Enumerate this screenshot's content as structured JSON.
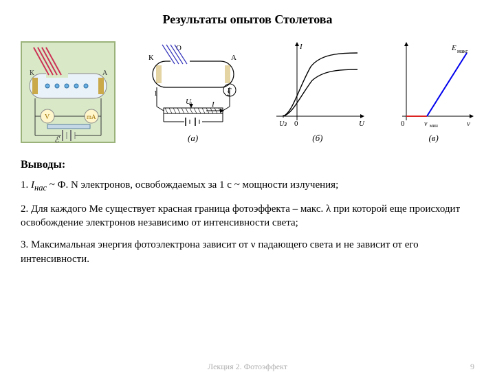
{
  "title": "Результаты опытов Столетова",
  "conclusions_head": "Выводы:",
  "p1": "1. Iнас ~ Ф. N электронов, освобождаемых за 1 с ~ мощности излучения;",
  "p2": "2. Для каждого Ме существует красная граница фотоэффекта – макс. λ при которой еще происходит освобождение электронов независимо от интенсивности света;",
  "p3": "3. Максимальная энергия фотоэлектрона зависит от ν падающего света и не зависит от его интенсивности.",
  "footer_center": "Лекция 2. Фотоэффект",
  "footer_page": "9",
  "figA": {
    "caption": "(а)",
    "labelK": "К",
    "labelA": "А",
    "labelU": "U",
    "labelI": "I",
    "labelG": "Г",
    "border": "#000000",
    "gold": "#c9a94a",
    "rays": "#3333bb",
    "bg": "#ffffff"
  },
  "figB": {
    "caption": "(б)",
    "y_label": "I",
    "x_label": "U",
    "u3_label": "Uз",
    "zero_label": "0",
    "axis_color": "#000000",
    "curve_color": "#000000"
  },
  "figC": {
    "caption": "(в)",
    "y_label": "Eмакс",
    "x_label": "ν",
    "zero_label": "0",
    "nu_min_label": "νмин",
    "axis_color": "#000000",
    "line_color": "#0000ee",
    "base_red": "#dd2222"
  },
  "leftDiagram": {
    "bg": "#d9e9c8",
    "cathode_blob": "#c9a94a",
    "tube_fill": "#eaf2f9",
    "rays": "#cc3355",
    "battery": "#777777",
    "electron": "#6cb0e3"
  }
}
